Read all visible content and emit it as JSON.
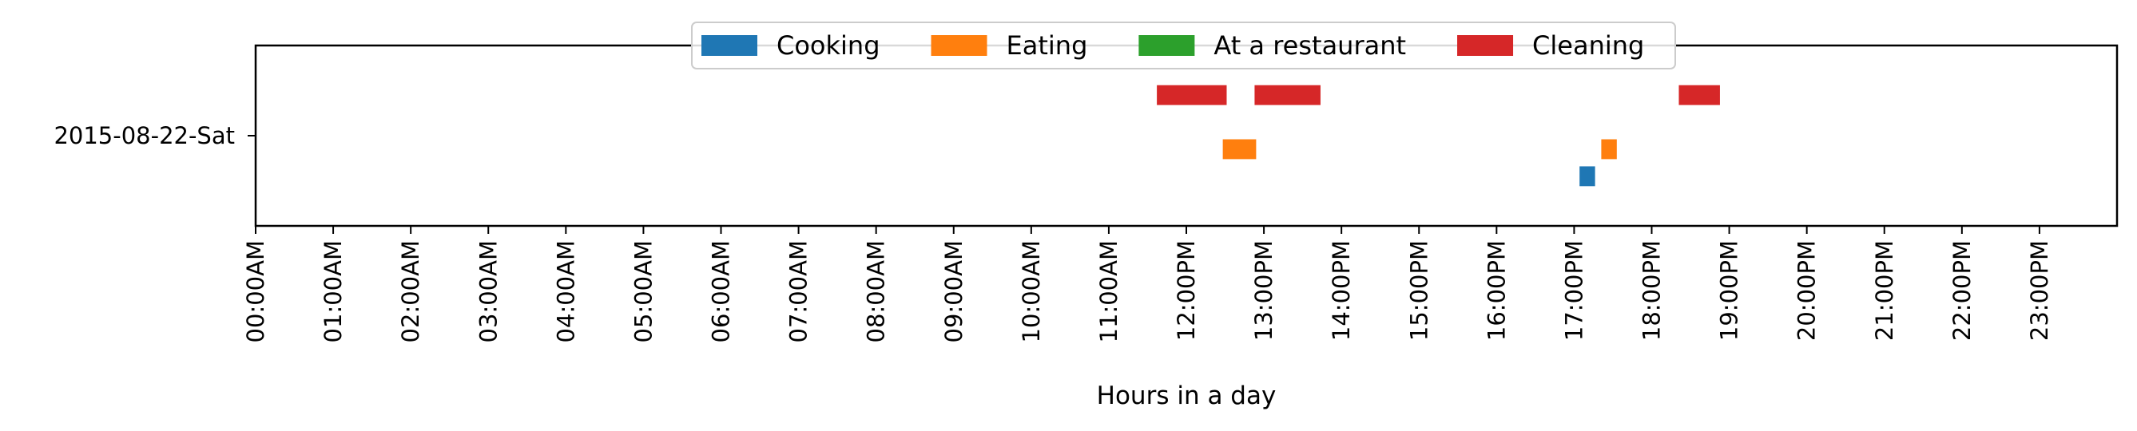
{
  "chart_data": {
    "type": "timeline",
    "xlabel": "Hours in a day",
    "xlim": [
      0,
      24
    ],
    "xticks": [
      {
        "value": 0,
        "label": "00:00AM"
      },
      {
        "value": 1,
        "label": "01:00AM"
      },
      {
        "value": 2,
        "label": "02:00AM"
      },
      {
        "value": 3,
        "label": "03:00AM"
      },
      {
        "value": 4,
        "label": "04:00AM"
      },
      {
        "value": 5,
        "label": "05:00AM"
      },
      {
        "value": 6,
        "label": "06:00AM"
      },
      {
        "value": 7,
        "label": "07:00AM"
      },
      {
        "value": 8,
        "label": "08:00AM"
      },
      {
        "value": 9,
        "label": "09:00AM"
      },
      {
        "value": 10,
        "label": "10:00AM"
      },
      {
        "value": 11,
        "label": "11:00AM"
      },
      {
        "value": 12,
        "label": "12:00PM"
      },
      {
        "value": 13,
        "label": "13:00PM"
      },
      {
        "value": 14,
        "label": "14:00PM"
      },
      {
        "value": 15,
        "label": "15:00PM"
      },
      {
        "value": 16,
        "label": "16:00PM"
      },
      {
        "value": 17,
        "label": "17:00PM"
      },
      {
        "value": 18,
        "label": "18:00PM"
      },
      {
        "value": 19,
        "label": "19:00PM"
      },
      {
        "value": 20,
        "label": "20:00PM"
      },
      {
        "value": 21,
        "label": "21:00PM"
      },
      {
        "value": 22,
        "label": "22:00PM"
      },
      {
        "value": 23,
        "label": "23:00PM"
      }
    ],
    "ylim": [
      -1,
      1
    ],
    "yticks": [
      {
        "value": 0,
        "label": "2015-08-22-Sat"
      }
    ],
    "legend_position": "top-center",
    "series": [
      {
        "name": "Cooking",
        "color": "#1f77b4",
        "lane": -0.45,
        "segments": [
          [
            17.07,
            17.27
          ]
        ]
      },
      {
        "name": "Eating",
        "color": "#ff7f0e",
        "lane": -0.15,
        "segments": [
          [
            12.47,
            12.9
          ],
          [
            17.35,
            17.55
          ]
        ]
      },
      {
        "name": "At a restaurant",
        "color": "#2ca02c",
        "lane": 0.15,
        "segments": []
      },
      {
        "name": "Cleaning",
        "color": "#d62728",
        "lane": 0.45,
        "segments": [
          [
            11.62,
            12.52
          ],
          [
            12.88,
            13.73
          ],
          [
            18.35,
            18.88
          ]
        ]
      }
    ]
  }
}
